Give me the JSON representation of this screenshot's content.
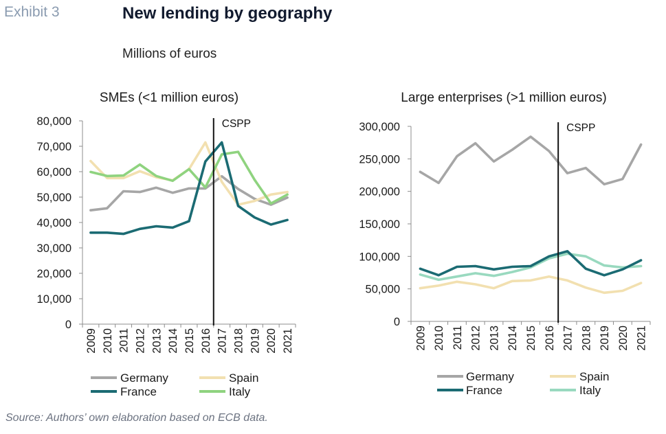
{
  "header": {
    "exhibit_label": "Exhibit 3",
    "title": "New lending by geography",
    "subtitle": "Millions of euros"
  },
  "footer": {
    "source": "Source: Authors’ own elaboration based on ECB data."
  },
  "chart_data": [
    {
      "type": "line",
      "title": "SMEs (<1 million euros)",
      "x": [
        "2009",
        "2010",
        "2011",
        "2012",
        "2013",
        "2014",
        "2015",
        "2016",
        "2017",
        "2018",
        "2019",
        "2020",
        "2021"
      ],
      "ylim": [
        0,
        80000
      ],
      "yticks": [
        0,
        10000,
        20000,
        30000,
        40000,
        50000,
        60000,
        70000,
        80000
      ],
      "ytick_labels": [
        "0",
        "10,000",
        "20,000",
        "30,000",
        "40,000",
        "50,000",
        "60,000",
        "70,000",
        "80,000"
      ],
      "grid": false,
      "annotation": {
        "label": "CSPP",
        "x": 2016.5
      },
      "legend_position": "bottom",
      "series": [
        {
          "name": "Germany",
          "color": "#a6a6a6",
          "values": [
            44800,
            45600,
            52300,
            52000,
            53700,
            51700,
            53400,
            53400,
            58200,
            53200,
            49300,
            47000,
            49800
          ]
        },
        {
          "name": "Spain",
          "color": "#f2e0b0",
          "values": [
            64200,
            57500,
            57500,
            60200,
            57800,
            56600,
            61000,
            71500,
            56000,
            47000,
            48500,
            51000,
            52000
          ]
        },
        {
          "name": "France",
          "color": "#1b6b73",
          "values": [
            36000,
            36000,
            35500,
            37500,
            38500,
            38000,
            40500,
            64000,
            71500,
            46500,
            42000,
            39200,
            41000
          ]
        },
        {
          "name": "Italy",
          "color": "#8fd37f",
          "values": [
            59900,
            58300,
            58500,
            62800,
            58300,
            56400,
            61000,
            53800,
            66800,
            67800,
            56800,
            47500,
            51000
          ]
        }
      ]
    },
    {
      "type": "line",
      "title": "Large enterprises (>1 million euros)",
      "x": [
        "2009",
        "2010",
        "2011",
        "2012",
        "2013",
        "2014",
        "2015",
        "2016",
        "2017",
        "2018",
        "2019",
        "2020",
        "2021"
      ],
      "ylim": [
        0,
        300000
      ],
      "yticks": [
        0,
        50000,
        100000,
        150000,
        200000,
        250000,
        300000
      ],
      "ytick_labels": [
        "0",
        "50,000",
        "100,000",
        "150,000",
        "200,000",
        "250,000",
        "300,000"
      ],
      "grid": false,
      "annotation": {
        "label": "CSPP",
        "x": 2016.5
      },
      "legend_position": "bottom",
      "series": [
        {
          "name": "Germany",
          "color": "#a6a6a6",
          "values": [
            230000,
            213000,
            254000,
            274000,
            246000,
            264000,
            284000,
            262000,
            228000,
            236000,
            211000,
            219000,
            272000
          ]
        },
        {
          "name": "Spain",
          "color": "#f2e0b0",
          "values": [
            51000,
            55000,
            61000,
            57000,
            51000,
            62000,
            63000,
            69000,
            63000,
            52000,
            44000,
            47000,
            59000
          ]
        },
        {
          "name": "France",
          "color": "#1b6b73",
          "values": [
            81000,
            71000,
            84000,
            85000,
            80000,
            84000,
            85000,
            100000,
            108000,
            81000,
            71000,
            80000,
            94000
          ]
        },
        {
          "name": "Italy",
          "color": "#99d9bf",
          "values": [
            72000,
            64000,
            69000,
            74000,
            70000,
            76000,
            83000,
            97000,
            104000,
            100000,
            86000,
            83000,
            85000
          ]
        }
      ]
    }
  ]
}
